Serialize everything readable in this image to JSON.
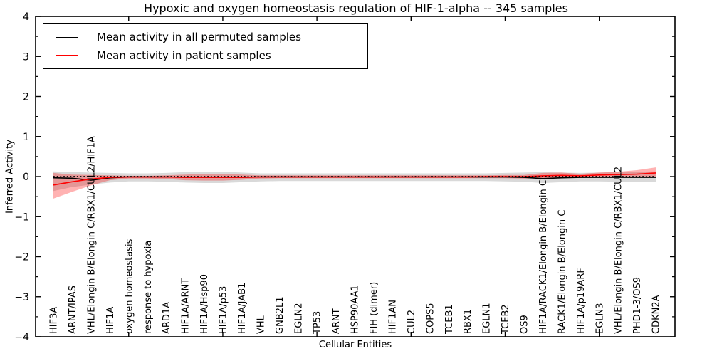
{
  "figure": {
    "title": "Hypoxic and oxygen homeostasis regulation of HIF-1-alpha -- 345 samples"
  },
  "legend": {
    "entries": [
      {
        "label": "Mean activity in all permuted samples",
        "color": "#000000"
      },
      {
        "label": "Mean activity in patient samples",
        "color": "#ff0000"
      }
    ]
  },
  "chart_data": {
    "type": "line",
    "title": "Hypoxic and oxygen homeostasis regulation of HIF-1-alpha -- 345 samples",
    "xlabel": "Cellular Entities",
    "ylabel": "Inferred Activity",
    "ylim": [
      -4,
      4
    ],
    "ytick_values": [
      4,
      3,
      2,
      1,
      0,
      -1,
      -2,
      -3,
      -4
    ],
    "ytick_labels": [
      "4",
      "3",
      "2",
      "1",
      "0",
      "−1",
      "−2",
      "−3",
      "−4"
    ],
    "y_minor_step": 0.5,
    "x_major_tick_indices": [
      4,
      9,
      14,
      19,
      24,
      29
    ],
    "grid": false,
    "legend_position": "upper left",
    "zero_reference_line": 0,
    "categories": [
      "HIF3A",
      "ARNT/IPAS",
      "VHL/Elongin B/Elongin C/RBX1/CUL2/HIF1A",
      "HIF1A",
      "oxygen homeostasis",
      "response to hypoxia",
      "ARD1A",
      "HIF1A/ARNT",
      "HIF1A/Hsp90",
      "HIF1A/p53",
      "HIF1A/JAB1",
      "VHL",
      "GNB2L1",
      "EGLN2",
      "TP53",
      "ARNT",
      "HSP90AA1",
      "FIH (dimer)",
      "HIF1AN",
      "CUL2",
      "COPS5",
      "TCEB1",
      "RBX1",
      "EGLN1",
      "TCEB2",
      "OS9",
      "HIF1A/RACK1/Elongin B/Elongin C",
      "RACK1/Elongin B/Elongin C",
      "HIF1A/p19ARF",
      "EGLN3",
      "VHL/Elongin B/Elongin C/RBX1/CUL2",
      "PHD1-3/OS9",
      "CDKN2A"
    ],
    "series": [
      {
        "name": "Mean activity in all permuted samples",
        "color": "#000000",
        "style": "solid",
        "values": [
          -0.03,
          -0.04,
          -0.09,
          -0.03,
          -0.01,
          -0.01,
          -0.01,
          -0.02,
          -0.02,
          -0.02,
          -0.02,
          -0.01,
          -0.01,
          -0.01,
          -0.01,
          -0.01,
          -0.01,
          -0.01,
          -0.01,
          -0.01,
          -0.01,
          -0.01,
          -0.01,
          -0.01,
          -0.01,
          -0.02,
          -0.05,
          -0.03,
          -0.02,
          -0.02,
          -0.02,
          -0.02,
          -0.02
        ]
      },
      {
        "name": "Mean activity in patient samples",
        "color": "#ff0000",
        "style": "solid",
        "values": [
          -0.21,
          -0.13,
          -0.06,
          -0.02,
          -0.01,
          -0.01,
          -0.01,
          -0.02,
          -0.02,
          -0.02,
          -0.02,
          -0.01,
          -0.01,
          -0.01,
          -0.01,
          -0.01,
          -0.01,
          -0.01,
          -0.01,
          -0.01,
          -0.01,
          -0.01,
          -0.01,
          0.0,
          0.0,
          0.0,
          0.02,
          0.03,
          0.02,
          0.04,
          0.05,
          0.06,
          0.09
        ]
      }
    ],
    "bands": [
      {
        "name": "permuted samples spread",
        "color": "rgba(120,120,120,0.28)",
        "lower": [
          -0.36,
          -0.26,
          -0.2,
          -0.15,
          -0.12,
          -0.12,
          -0.13,
          -0.15,
          -0.16,
          -0.16,
          -0.14,
          -0.12,
          -0.11,
          -0.11,
          -0.11,
          -0.11,
          -0.11,
          -0.11,
          -0.11,
          -0.11,
          -0.11,
          -0.11,
          -0.11,
          -0.11,
          -0.12,
          -0.13,
          -0.16,
          -0.14,
          -0.12,
          -0.12,
          -0.13,
          -0.13,
          -0.14
        ],
        "upper": [
          0.13,
          0.11,
          0.1,
          0.09,
          0.08,
          0.08,
          0.09,
          0.11,
          0.12,
          0.12,
          0.1,
          0.08,
          0.08,
          0.08,
          0.08,
          0.08,
          0.08,
          0.08,
          0.08,
          0.08,
          0.08,
          0.08,
          0.08,
          0.08,
          0.09,
          0.1,
          0.11,
          0.1,
          0.09,
          0.1,
          0.11,
          0.12,
          0.13
        ]
      },
      {
        "name": "patient samples spread",
        "color": "rgba(255,0,0,0.30)",
        "lower": [
          -0.55,
          -0.38,
          -0.22,
          -0.09,
          -0.05,
          -0.05,
          -0.06,
          -0.09,
          -0.1,
          -0.1,
          -0.08,
          -0.05,
          -0.04,
          -0.04,
          -0.04,
          -0.04,
          -0.04,
          -0.04,
          -0.04,
          -0.04,
          -0.04,
          -0.04,
          -0.04,
          -0.04,
          -0.04,
          -0.05,
          -0.04,
          -0.03,
          -0.03,
          -0.02,
          -0.02,
          0.0,
          -0.01
        ],
        "upper": [
          0.09,
          0.05,
          0.04,
          0.03,
          0.02,
          0.02,
          0.03,
          0.05,
          0.07,
          0.07,
          0.05,
          0.03,
          0.03,
          0.03,
          0.03,
          0.03,
          0.03,
          0.03,
          0.03,
          0.03,
          0.03,
          0.03,
          0.03,
          0.03,
          0.04,
          0.04,
          0.09,
          0.1,
          0.07,
          0.1,
          0.12,
          0.16,
          0.23
        ]
      }
    ]
  }
}
